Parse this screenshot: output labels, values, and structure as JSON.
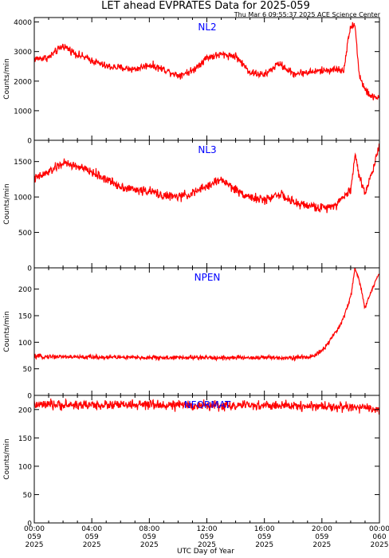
{
  "title": "LET ahead EVPRATES Data for 2025-059",
  "timestamp": "Thu Mar  6 09:55:37 2025 ACE Science Center",
  "x_axis": {
    "label": "UTC Day of Year",
    "ticks": [
      {
        "time": "00:00",
        "doy": "059",
        "year": "2025"
      },
      {
        "time": "04:00",
        "doy": "059",
        "year": "2025"
      },
      {
        "time": "08:00",
        "doy": "059",
        "year": "2025"
      },
      {
        "time": "12:00",
        "doy": "059",
        "year": "2025"
      },
      {
        "time": "16:00",
        "doy": "059",
        "year": "2025"
      },
      {
        "time": "20:00",
        "doy": "059",
        "year": "2025"
      },
      {
        "time": "00:00",
        "doy": "060",
        "year": "2025"
      }
    ]
  },
  "colors": {
    "series": "#ff0000",
    "panel_label": "#0000ff",
    "axis": "#000000"
  },
  "chart_data": [
    {
      "type": "line",
      "panel_label": "NL2",
      "ylabel": "Counts/min",
      "ylim": [
        0,
        4150
      ],
      "yticks": [
        0,
        1000,
        2000,
        3000,
        4000
      ],
      "x": [
        0,
        1,
        2,
        3,
        4,
        5,
        6,
        7,
        8,
        9,
        10,
        11,
        12,
        13,
        14,
        15,
        16,
        17,
        18,
        19,
        20,
        21,
        21.5,
        22,
        22.3,
        22.6,
        23,
        23.5,
        24
      ],
      "series": [
        {
          "values": [
            2750,
            2800,
            3200,
            2900,
            2700,
            2500,
            2450,
            2400,
            2550,
            2400,
            2200,
            2350,
            2800,
            2900,
            2850,
            2300,
            2200,
            2600,
            2250,
            2300,
            2350,
            2400,
            2350,
            3900,
            3900,
            2200,
            1700,
            1450,
            1450
          ],
          "noise": 90
        }
      ]
    },
    {
      "type": "line",
      "panel_label": "NL3",
      "ylabel": "Counts/min",
      "ylim": [
        0,
        1800
      ],
      "yticks": [
        0,
        500,
        1000,
        1500
      ],
      "x": [
        0,
        1,
        2,
        3,
        4,
        5,
        6,
        7,
        8,
        9,
        10,
        11,
        12,
        13,
        14,
        15,
        16,
        17,
        18,
        19,
        20,
        21,
        21.5,
        22,
        22.3,
        22.6,
        23,
        23.5,
        24
      ],
      "series": [
        {
          "values": [
            1250,
            1350,
            1480,
            1430,
            1350,
            1250,
            1150,
            1100,
            1080,
            1020,
            1000,
            1050,
            1150,
            1250,
            1100,
            1000,
            950,
            1050,
            920,
            880,
            840,
            900,
            1000,
            1100,
            1600,
            1300,
            1050,
            1350,
            1750
          ],
          "noise": 45
        }
      ]
    },
    {
      "type": "line",
      "panel_label": "NPEN",
      "ylabel": "Counts/min",
      "ylim": [
        0,
        240
      ],
      "yticks": [
        0,
        50,
        100,
        150,
        200
      ],
      "x": [
        0,
        1,
        2,
        3,
        4,
        5,
        6,
        7,
        8,
        9,
        10,
        11,
        12,
        13,
        14,
        15,
        16,
        17,
        18,
        19,
        19.5,
        20,
        20.5,
        21,
        21.5,
        22,
        22.3,
        22.6,
        23,
        23.5,
        24
      ],
      "series": [
        {
          "values": [
            73,
            73,
            73,
            72,
            72,
            72,
            72,
            71,
            71,
            71,
            71,
            71,
            71,
            71,
            71,
            71,
            71,
            71,
            71,
            72,
            75,
            85,
            100,
            120,
            145,
            185,
            240,
            215,
            165,
            200,
            230
          ],
          "noise": 3
        }
      ]
    },
    {
      "type": "line",
      "panel_label": "NFORMAT",
      "ylabel": "Counts/min",
      "ylim": [
        0,
        225
      ],
      "yticks": [
        0,
        50,
        100,
        150,
        200
      ],
      "x": [
        0,
        4,
        8,
        12,
        16,
        20,
        22,
        24
      ],
      "series": [
        {
          "values": [
            208,
            208,
            208,
            207,
            207,
            206,
            204,
            200
          ],
          "noise": 6
        }
      ]
    }
  ]
}
